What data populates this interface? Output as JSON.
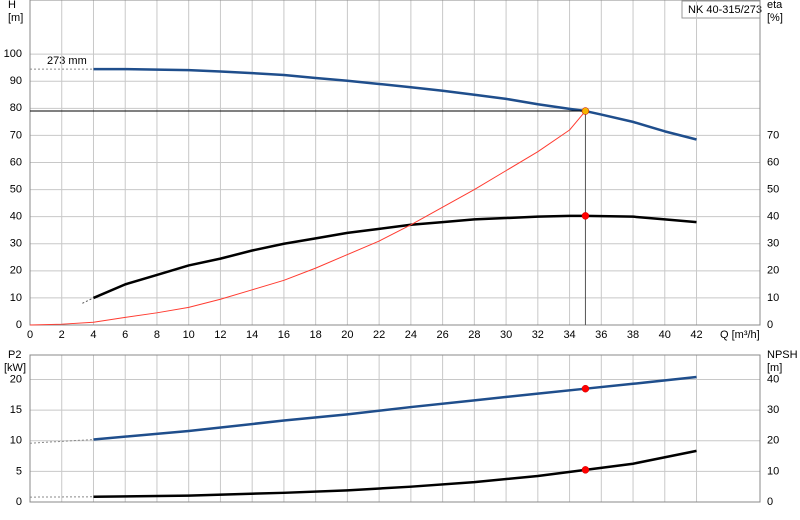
{
  "chart_data": [
    {
      "type": "line",
      "title": "NK 40-315/273",
      "ylabel": "H",
      "yunit": "[m]",
      "y2label": "eta",
      "y2unit": "[%]",
      "xlabel": "Q [m³/h]",
      "annotation": "273 mm",
      "xlim": [
        0,
        46
      ],
      "xticks": [
        0,
        2,
        4,
        6,
        8,
        10,
        12,
        14,
        16,
        18,
        20,
        22,
        24,
        26,
        28,
        30,
        32,
        34,
        36,
        38,
        40,
        42
      ],
      "ylim": [
        0,
        120
      ],
      "yticks": [
        0,
        10,
        20,
        30,
        40,
        50,
        60,
        70,
        80,
        90,
        100
      ],
      "y2lim": [
        0,
        120
      ],
      "y2ticks": [
        0,
        10,
        20,
        30,
        40,
        50,
        60,
        70
      ],
      "grid": true,
      "series": [
        {
          "color": "#1f4e8c",
          "width": 2.5,
          "x": [
            4,
            6,
            8,
            10,
            12,
            14,
            16,
            18,
            20,
            22,
            24,
            26,
            28,
            30,
            32,
            34,
            35,
            36,
            38,
            40,
            42
          ],
          "values": [
            94.5,
            94.5,
            94.3,
            94.1,
            93.6,
            93,
            92.3,
            91.2,
            90.2,
            89,
            87.8,
            86.5,
            85,
            83.5,
            81.5,
            79.8,
            79,
            77.7,
            75,
            71.5,
            68.5
          ]
        },
        {
          "color": "#000000",
          "width": 2.5,
          "axis": "y2",
          "x": [
            4,
            6,
            8,
            10,
            12,
            14,
            16,
            18,
            20,
            22,
            24,
            26,
            28,
            30,
            32,
            34,
            35,
            36,
            38,
            40,
            42
          ],
          "values": [
            10,
            15,
            18.5,
            22,
            24.5,
            27.5,
            30,
            32,
            34,
            35.5,
            37,
            38,
            39,
            39.5,
            40,
            40.3,
            40.3,
            40.2,
            40,
            39,
            38
          ]
        },
        {
          "color": "#ff3b30",
          "width": 1,
          "x": [
            0,
            2,
            4,
            6,
            8,
            10,
            12,
            14,
            16,
            18,
            20,
            22,
            24,
            26,
            28,
            30,
            32,
            34,
            35
          ],
          "values": [
            0,
            0.3,
            1,
            2.8,
            4.5,
            6.5,
            9.5,
            13,
            16.5,
            21,
            26,
            31,
            37,
            43.5,
            50,
            57,
            64,
            72,
            79
          ]
        },
        {
          "color": "#888888",
          "width": 1,
          "dash": true,
          "x": [
            0,
            4
          ],
          "values": [
            94.5,
            94.5
          ]
        },
        {
          "color": "#555555",
          "width": 1,
          "dash": true,
          "axis": "y2",
          "x": [
            3.3,
            4
          ],
          "values": [
            8,
            10
          ]
        }
      ],
      "markers": [
        {
          "x": 35,
          "y": 79,
          "color": "#f5b400",
          "crosshair": true
        },
        {
          "x": 35,
          "y": 40.3,
          "color": "#ff0000",
          "axis": "y2"
        }
      ]
    },
    {
      "type": "line",
      "ylabel": "P2",
      "yunit": "[kW]",
      "y2label": "NPSH",
      "y2unit": "[m]",
      "xlim": [
        0,
        46
      ],
      "ylim": [
        0,
        24
      ],
      "yticks": [
        0,
        5,
        10,
        15,
        20
      ],
      "y2lim": [
        0,
        48
      ],
      "y2ticks": [
        0,
        10,
        20,
        30,
        40
      ],
      "grid": true,
      "series": [
        {
          "color": "#1f4e8c",
          "width": 2.5,
          "x": [
            4,
            10,
            16,
            20,
            24,
            28,
            32,
            35,
            38,
            42
          ],
          "values": [
            10.2,
            11.6,
            13.3,
            14.3,
            15.5,
            16.6,
            17.7,
            18.5,
            19.3,
            20.4
          ]
        },
        {
          "color": "#000000",
          "width": 2.5,
          "axis": "y2",
          "x": [
            4,
            10,
            16,
            20,
            24,
            28,
            32,
            35,
            38,
            42
          ],
          "values": [
            1.7,
            2.1,
            3,
            3.8,
            5,
            6.5,
            8.5,
            10.5,
            12.5,
            16.7
          ]
        },
        {
          "color": "#888888",
          "width": 1,
          "dash": true,
          "x": [
            0,
            4
          ],
          "values": [
            9.6,
            10.2
          ]
        },
        {
          "color": "#888888",
          "width": 1,
          "dash": true,
          "axis": "y2",
          "x": [
            0,
            4
          ],
          "values": [
            1.6,
            1.7
          ]
        }
      ],
      "markers": [
        {
          "x": 35,
          "y": 18.5,
          "color": "#ff0000"
        },
        {
          "x": 35,
          "y": 10.5,
          "color": "#ff0000",
          "axis": "y2"
        }
      ]
    }
  ]
}
